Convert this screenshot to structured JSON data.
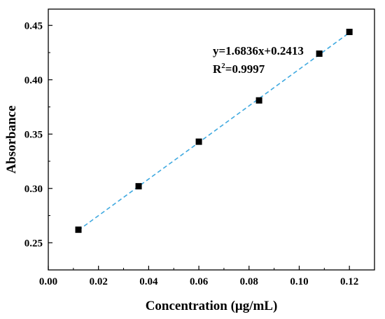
{
  "chart_data": {
    "type": "scatter",
    "xlabel": "Concentration (μg/mL)",
    "ylabel": "Absorbance",
    "xlim": [
      0.0,
      0.13
    ],
    "ylim": [
      0.225,
      0.465
    ],
    "x_ticks": [
      "0.00",
      "0.02",
      "0.04",
      "0.06",
      "0.08",
      "0.10",
      "0.12"
    ],
    "y_ticks": [
      "0.25",
      "0.30",
      "0.35",
      "0.40",
      "0.45"
    ],
    "series": [
      {
        "x": [
          0.012,
          0.036,
          0.06,
          0.084,
          0.108,
          0.12
        ],
        "y": [
          0.262,
          0.302,
          0.343,
          0.381,
          0.424,
          0.444
        ]
      }
    ],
    "fit_line": {
      "slope": 1.6836,
      "intercept": 0.2413,
      "x_range": [
        0.012,
        0.12
      ]
    },
    "equation": "y=1.6836x+0.2413",
    "r2_base": "R",
    "r2_sup": "2",
    "r2_value": "=0.9997",
    "grid": false,
    "colors": {
      "marker": "#000000",
      "fit_line": "#3fa9e0",
      "axis": "#000000"
    }
  }
}
